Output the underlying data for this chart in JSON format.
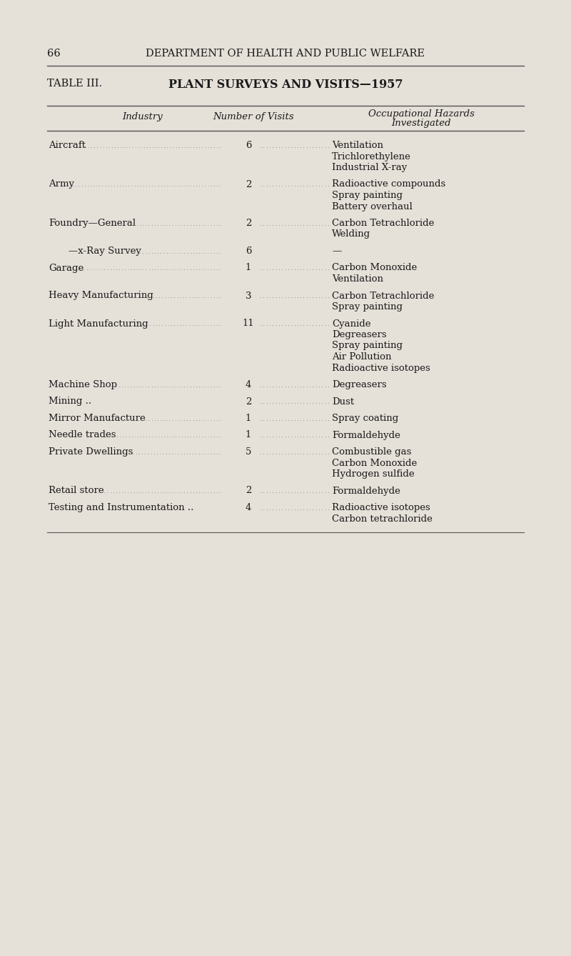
{
  "page_number": "66",
  "page_header": "DEPARTMENT OF HEALTH AND PUBLIC WELFARE",
  "table_label": "TABLE III.",
  "table_title": "PLANT SURVEYS AND VISITS—1957",
  "bg_color": "#e5e0d8",
  "text_color": "#1a1a1a",
  "rows": [
    {
      "industry": "Aircraft",
      "industry_dots": true,
      "indent": false,
      "visits": "6",
      "visits_dots": true,
      "hazards": [
        "Ventilation",
        "Trichlorethylene",
        "Industrial X-ray"
      ]
    },
    {
      "industry": "Army",
      "industry_dots": true,
      "indent": false,
      "visits": "2",
      "visits_dots": true,
      "hazards": [
        "Radioactive compounds",
        "Spray painting",
        "Battery overhaul"
      ]
    },
    {
      "industry": "Foundry—General",
      "industry_dots": true,
      "indent": false,
      "visits": "2",
      "visits_dots": true,
      "hazards": [
        "Carbon Tetrachloride",
        "Welding"
      ]
    },
    {
      "industry": "—x-Ray Survey",
      "industry_dots": true,
      "indent": true,
      "visits": "6",
      "visits_dots": false,
      "hazards": [
        "—"
      ]
    },
    {
      "industry": "Garage",
      "industry_dots": true,
      "indent": false,
      "visits": "1",
      "visits_dots": true,
      "hazards": [
        "Carbon Monoxide",
        "Ventilation"
      ]
    },
    {
      "industry": "Heavy Manufacturing",
      "industry_dots": true,
      "indent": false,
      "visits": "3",
      "visits_dots": true,
      "hazards": [
        "Carbon Tetrachloride",
        "Spray painting"
      ]
    },
    {
      "industry": "Light Manufacturing",
      "industry_dots": true,
      "indent": false,
      "visits": "11",
      "visits_dots": true,
      "hazards": [
        "Cyanide",
        "Degreasers",
        "Spray painting",
        "Air Pollution",
        "Radioactive isotopes"
      ]
    },
    {
      "industry": "Machine Shop",
      "industry_dots": true,
      "indent": false,
      "visits": "4",
      "visits_dots": true,
      "hazards": [
        "Degreasers"
      ]
    },
    {
      "industry": "Mining ..",
      "industry_dots": false,
      "indent": false,
      "visits": "2",
      "visits_dots": true,
      "hazards": [
        "Dust"
      ]
    },
    {
      "industry": "Mirror Manufacture",
      "industry_dots": true,
      "indent": false,
      "visits": "1",
      "visits_dots": true,
      "hazards": [
        "Spray coating"
      ]
    },
    {
      "industry": "Needle trades",
      "industry_dots": true,
      "indent": false,
      "visits": "1",
      "visits_dots": true,
      "hazards": [
        "Formaldehyde"
      ]
    },
    {
      "industry": "Private Dwellings",
      "industry_dots": true,
      "indent": false,
      "visits": "5",
      "visits_dots": true,
      "hazards": [
        "Combustible gas",
        "Carbon Monoxide",
        "Hydrogen sulfide"
      ]
    },
    {
      "industry": "Retail store",
      "industry_dots": true,
      "indent": false,
      "visits": "2",
      "visits_dots": true,
      "hazards": [
        "Formaldehyde"
      ]
    },
    {
      "industry": "Testing and Instrumentation ..",
      "industry_dots": false,
      "indent": false,
      "visits": "4",
      "visits_dots": true,
      "hazards": [
        "Radioactive isotopes",
        "Carbon tetrachloride"
      ]
    }
  ]
}
